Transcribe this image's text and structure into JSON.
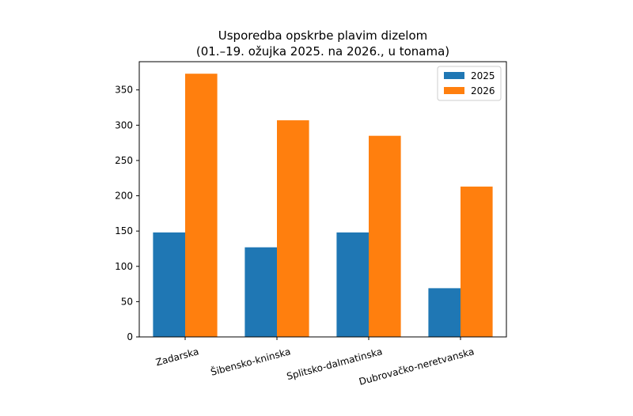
{
  "chart_data": {
    "type": "bar",
    "title": "Usporedba opskrbe plavim dizelom",
    "subtitle": "(01.–19. ožujka 2025. na 2026., u tonama)",
    "xlabel": "",
    "ylabel": "",
    "categories": [
      "Zadarska",
      "Šibensko-kninska",
      "Splitsko-dalmatinska",
      "Dubrovačko-neretvanska"
    ],
    "series": [
      {
        "name": "2025",
        "color": "#1f77b4",
        "values": [
          148,
          127,
          148,
          69
        ]
      },
      {
        "name": "2026",
        "color": "#ff7f0e",
        "values": [
          373,
          307,
          285,
          213
        ]
      }
    ],
    "ylim": [
      0,
      390
    ],
    "yticks": [
      0,
      50,
      100,
      150,
      200,
      250,
      300,
      350
    ],
    "grid": false,
    "legend_position": "top-right"
  }
}
